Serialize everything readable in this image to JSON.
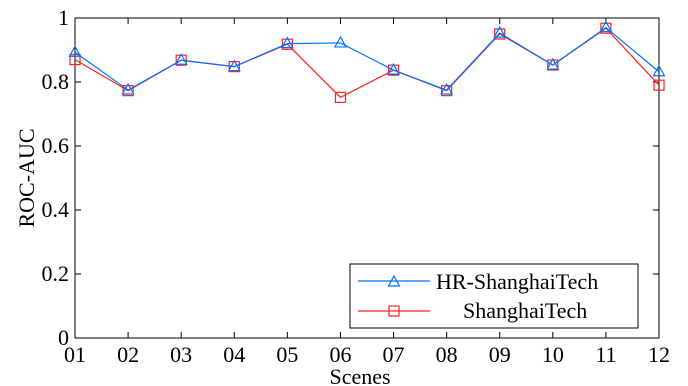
{
  "chart_data": {
    "type": "line",
    "title": "",
    "xlabel": "Scenes",
    "ylabel": "ROC-AUC",
    "categories": [
      "01",
      "02",
      "03",
      "04",
      "05",
      "06",
      "07",
      "08",
      "09",
      "10",
      "11",
      "12"
    ],
    "ylim": [
      0,
      1
    ],
    "yticks": [
      "0",
      "0.2",
      "0.4",
      "0.6",
      "0.8",
      "1"
    ],
    "ytick_values": [
      0,
      0.2,
      0.4,
      0.6,
      0.8,
      1
    ],
    "grid": false,
    "legend_position": "bottom-right",
    "series": [
      {
        "name": "HR-ShanghaiTech",
        "color": "#0072ff",
        "marker": "triangle",
        "values": [
          0.893,
          0.775,
          0.868,
          0.848,
          0.92,
          0.922,
          0.837,
          0.775,
          0.953,
          0.853,
          0.97,
          0.832
        ]
      },
      {
        "name": "ShanghaiTech",
        "color": "#ff2020",
        "marker": "square",
        "values": [
          0.87,
          0.773,
          0.868,
          0.848,
          0.918,
          0.752,
          0.837,
          0.773,
          0.95,
          0.853,
          0.968,
          0.79
        ]
      }
    ]
  }
}
